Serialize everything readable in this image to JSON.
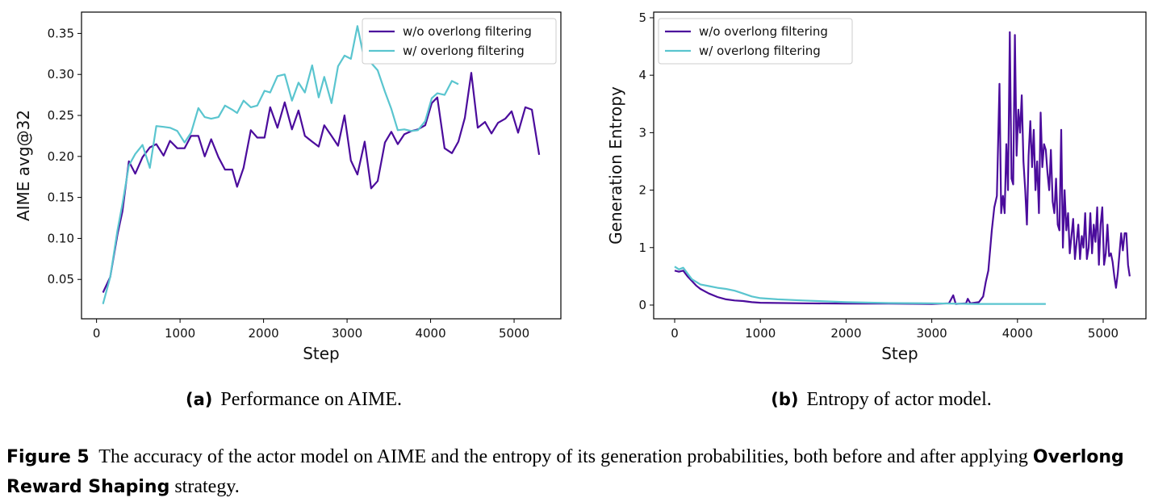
{
  "chart_data": [
    {
      "type": "line",
      "xlabel": "Step",
      "ylabel": "AIME avg@32",
      "xlim": [
        -180,
        5560
      ],
      "ylim": [
        0.002,
        0.376
      ],
      "xticks": [
        0,
        1000,
        2000,
        3000,
        4000,
        5000
      ],
      "yticks": [
        0.05,
        {
          "value": 0.1,
          "label": "0.10"
        },
        0.15,
        {
          "value": 0.2,
          "label": "0.20"
        },
        0.25,
        {
          "value": 0.3,
          "label": "0.30"
        },
        0.35
      ],
      "legend": "upper right",
      "grid": false,
      "series": [
        {
          "name": "w/o overlong filtering",
          "color": "#4b0c9c",
          "x": [
            77,
            164,
            251,
            310,
            387,
            464,
            551,
            638,
            716,
            803,
            880,
            967,
            1054,
            1132,
            1219,
            1296,
            1373,
            1460,
            1538,
            1625,
            1683,
            1760,
            1847,
            1925,
            2012,
            2079,
            2166,
            2253,
            2340,
            2418,
            2495,
            2582,
            2660,
            2727,
            2814,
            2892,
            2969,
            3046,
            3124,
            3211,
            3288,
            3366,
            3453,
            3530,
            3607,
            3685,
            3772,
            3849,
            3936,
            4014,
            4081,
            4168,
            4255,
            4333,
            4410,
            4487,
            4565,
            4652,
            4729,
            4807,
            4894,
            4971,
            5048,
            5135,
            5213,
            5300
          ],
          "values": [
            0.034,
            0.053,
            0.105,
            0.133,
            0.194,
            0.179,
            0.199,
            0.211,
            0.215,
            0.201,
            0.219,
            0.21,
            0.21,
            0.225,
            0.225,
            0.2,
            0.221,
            0.199,
            0.184,
            0.184,
            0.163,
            0.186,
            0.232,
            0.223,
            0.223,
            0.26,
            0.235,
            0.266,
            0.233,
            0.256,
            0.225,
            0.218,
            0.212,
            0.238,
            0.225,
            0.213,
            0.25,
            0.195,
            0.178,
            0.218,
            0.161,
            0.17,
            0.217,
            0.23,
            0.215,
            0.227,
            0.231,
            0.233,
            0.238,
            0.265,
            0.272,
            0.21,
            0.204,
            0.218,
            0.247,
            0.302,
            0.235,
            0.242,
            0.228,
            0.241,
            0.246,
            0.255,
            0.229,
            0.26,
            0.257,
            0.202
          ]
        },
        {
          "name": "w/ overlong filtering",
          "color": "#5ac5cf",
          "x": [
            77,
            164,
            251,
            310,
            387,
            464,
            551,
            638,
            716,
            803,
            880,
            967,
            1054,
            1132,
            1219,
            1296,
            1373,
            1460,
            1538,
            1625,
            1683,
            1760,
            1847,
            1925,
            2012,
            2079,
            2166,
            2253,
            2340,
            2418,
            2495,
            2582,
            2660,
            2727,
            2814,
            2892,
            2969,
            3046,
            3124,
            3211,
            3288,
            3366,
            3453,
            3530,
            3607,
            3685,
            3772,
            3849,
            3936,
            4014,
            4081,
            4168,
            4255,
            4333
          ],
          "values": [
            0.02,
            0.053,
            0.11,
            0.142,
            0.189,
            0.203,
            0.214,
            0.186,
            0.237,
            0.236,
            0.235,
            0.231,
            0.217,
            0.229,
            0.259,
            0.248,
            0.246,
            0.248,
            0.262,
            0.257,
            0.253,
            0.268,
            0.26,
            0.262,
            0.28,
            0.278,
            0.298,
            0.3,
            0.268,
            0.29,
            0.278,
            0.311,
            0.272,
            0.297,
            0.265,
            0.31,
            0.323,
            0.319,
            0.359,
            0.316,
            0.314,
            0.305,
            0.279,
            0.258,
            0.232,
            0.233,
            0.231,
            0.232,
            0.243,
            0.271,
            0.277,
            0.275,
            0.292,
            0.288
          ]
        }
      ]
    },
    {
      "type": "line",
      "xlabel": "Step",
      "ylabel": "Generation Entropy",
      "xlim": [
        -245,
        5499
      ],
      "ylim": [
        -0.239,
        5.098
      ],
      "xticks": [
        0,
        1000,
        2000,
        3000,
        4000,
        5000
      ],
      "yticks": [
        0,
        1,
        2,
        3,
        4,
        5
      ],
      "legend": "upper left",
      "grid": false,
      "series": [
        {
          "name": "w/o overlong filtering",
          "color": "#4b0c9c",
          "x": [
            0,
            50,
            100,
            150,
            200,
            250,
            300,
            400,
            500,
            600,
            700,
            800,
            900,
            1000,
            1500,
            2000,
            2500,
            3000,
            3200,
            3250,
            3280,
            3400,
            3420,
            3450,
            3550,
            3600,
            3630,
            3660,
            3700,
            3730,
            3760,
            3790,
            3810,
            3830,
            3850,
            3870,
            3890,
            3910,
            3930,
            3950,
            3970,
            3990,
            4010,
            4030,
            4050,
            4070,
            4090,
            4110,
            4130,
            4150,
            4170,
            4190,
            4210,
            4230,
            4250,
            4270,
            4290,
            4310,
            4330,
            4350,
            4370,
            4390,
            4410,
            4430,
            4450,
            4470,
            4490,
            4510,
            4530,
            4550,
            4570,
            4590,
            4610,
            4630,
            4650,
            4670,
            4690,
            4710,
            4730,
            4750,
            4770,
            4790,
            4810,
            4830,
            4850,
            4870,
            4890,
            4910,
            4930,
            4950,
            4970,
            4990,
            5010,
            5030,
            5050,
            5070,
            5090,
            5110,
            5130,
            5150,
            5170,
            5190,
            5210,
            5230,
            5250,
            5270,
            5290,
            5310
          ],
          "values": [
            0.6,
            0.58,
            0.6,
            0.5,
            0.42,
            0.34,
            0.28,
            0.2,
            0.14,
            0.1,
            0.08,
            0.07,
            0.05,
            0.04,
            0.03,
            0.025,
            0.025,
            0.02,
            0.03,
            0.17,
            0.02,
            0.03,
            0.11,
            0.03,
            0.05,
            0.15,
            0.4,
            0.6,
            1.3,
            1.7,
            1.9,
            3.85,
            1.6,
            1.9,
            1.6,
            2.8,
            2.0,
            4.75,
            2.2,
            2.1,
            4.7,
            2.6,
            3.4,
            3.0,
            3.65,
            2.5,
            2.0,
            1.4,
            2.6,
            3.2,
            2.4,
            3.05,
            2.0,
            2.5,
            1.6,
            3.35,
            2.4,
            2.8,
            2.7,
            2.3,
            2.0,
            2.7,
            1.8,
            1.6,
            2.2,
            1.4,
            1.3,
            3.05,
            1.0,
            2.0,
            1.3,
            1.6,
            0.9,
            1.2,
            1.5,
            0.8,
            1.1,
            1.4,
            0.8,
            1.2,
            1.0,
            1.6,
            0.8,
            1.0,
            1.6,
            0.9,
            1.4,
            1.1,
            1.7,
            0.7,
            1.4,
            1.7,
            0.7,
            0.9,
            1.4,
            0.85,
            0.9,
            0.75,
            0.5,
            0.3,
            0.55,
            0.9,
            1.25,
            0.95,
            1.25,
            1.25,
            0.7,
            0.5
          ]
        },
        {
          "name": "w/ overlong filtering",
          "color": "#5ac5cf",
          "x": [
            0,
            50,
            100,
            150,
            200,
            300,
            400,
            500,
            600,
            700,
            800,
            900,
            1000,
            1200,
            1500,
            2000,
            2500,
            3000,
            3500,
            4000,
            4330
          ],
          "values": [
            0.67,
            0.62,
            0.65,
            0.55,
            0.45,
            0.36,
            0.33,
            0.3,
            0.28,
            0.25,
            0.2,
            0.15,
            0.12,
            0.1,
            0.08,
            0.05,
            0.035,
            0.03,
            0.02,
            0.02,
            0.02
          ]
        }
      ]
    }
  ],
  "subcaptions": [
    {
      "label": "(a)",
      "text": "Performance on AIME."
    },
    {
      "label": "(b)",
      "text": "Entropy of actor model."
    }
  ],
  "caption": {
    "label": "Figure 5",
    "text": "The accuracy of the actor model on AIME and the entropy of its generation probabilities, both before and after applying",
    "emphasis": "Overlong Reward Shaping",
    "text_after": "strategy."
  }
}
